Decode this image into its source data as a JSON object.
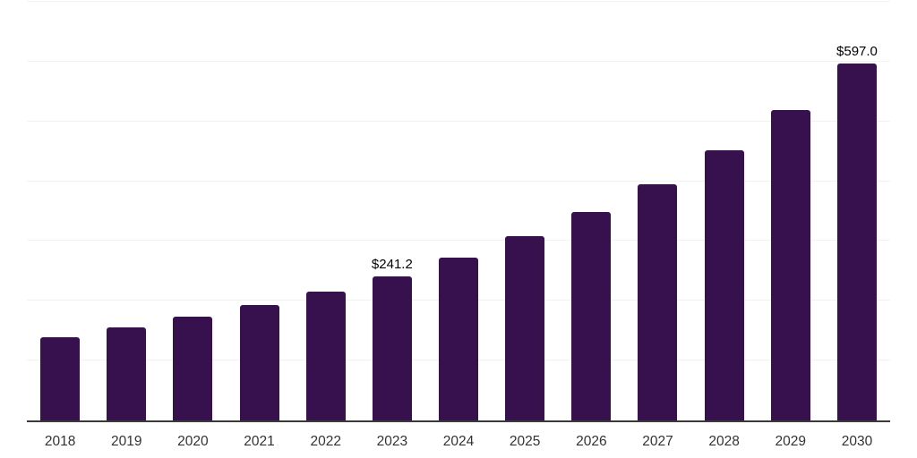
{
  "chart_data": {
    "type": "bar",
    "title": "",
    "xlabel": "",
    "ylabel": "",
    "categories": [
      "2018",
      "2019",
      "2020",
      "2021",
      "2022",
      "2023",
      "2024",
      "2025",
      "2026",
      "2027",
      "2028",
      "2029",
      "2030"
    ],
    "values": [
      139.8,
      155.4,
      173.2,
      193.0,
      215.9,
      241.2,
      272.1,
      308.1,
      348.7,
      394.3,
      451.3,
      518.6,
      597.0
    ],
    "bar_labels": [
      "",
      "",
      "",
      "",
      "",
      "$241.2",
      "",
      "",
      "",
      "",
      "",
      "",
      "$597.0"
    ],
    "ylim": [
      0,
      700
    ],
    "grid_step": 100,
    "grid": "horizontal",
    "legend_position": "none",
    "y_tick_labels": "none",
    "colors": {
      "bar": "#36114D",
      "axis_line": "#3A3A3A",
      "gridline": "#F2F2F2",
      "tick_label": "#333333",
      "data_label": "#000000",
      "background": "#FFFFFF"
    }
  }
}
